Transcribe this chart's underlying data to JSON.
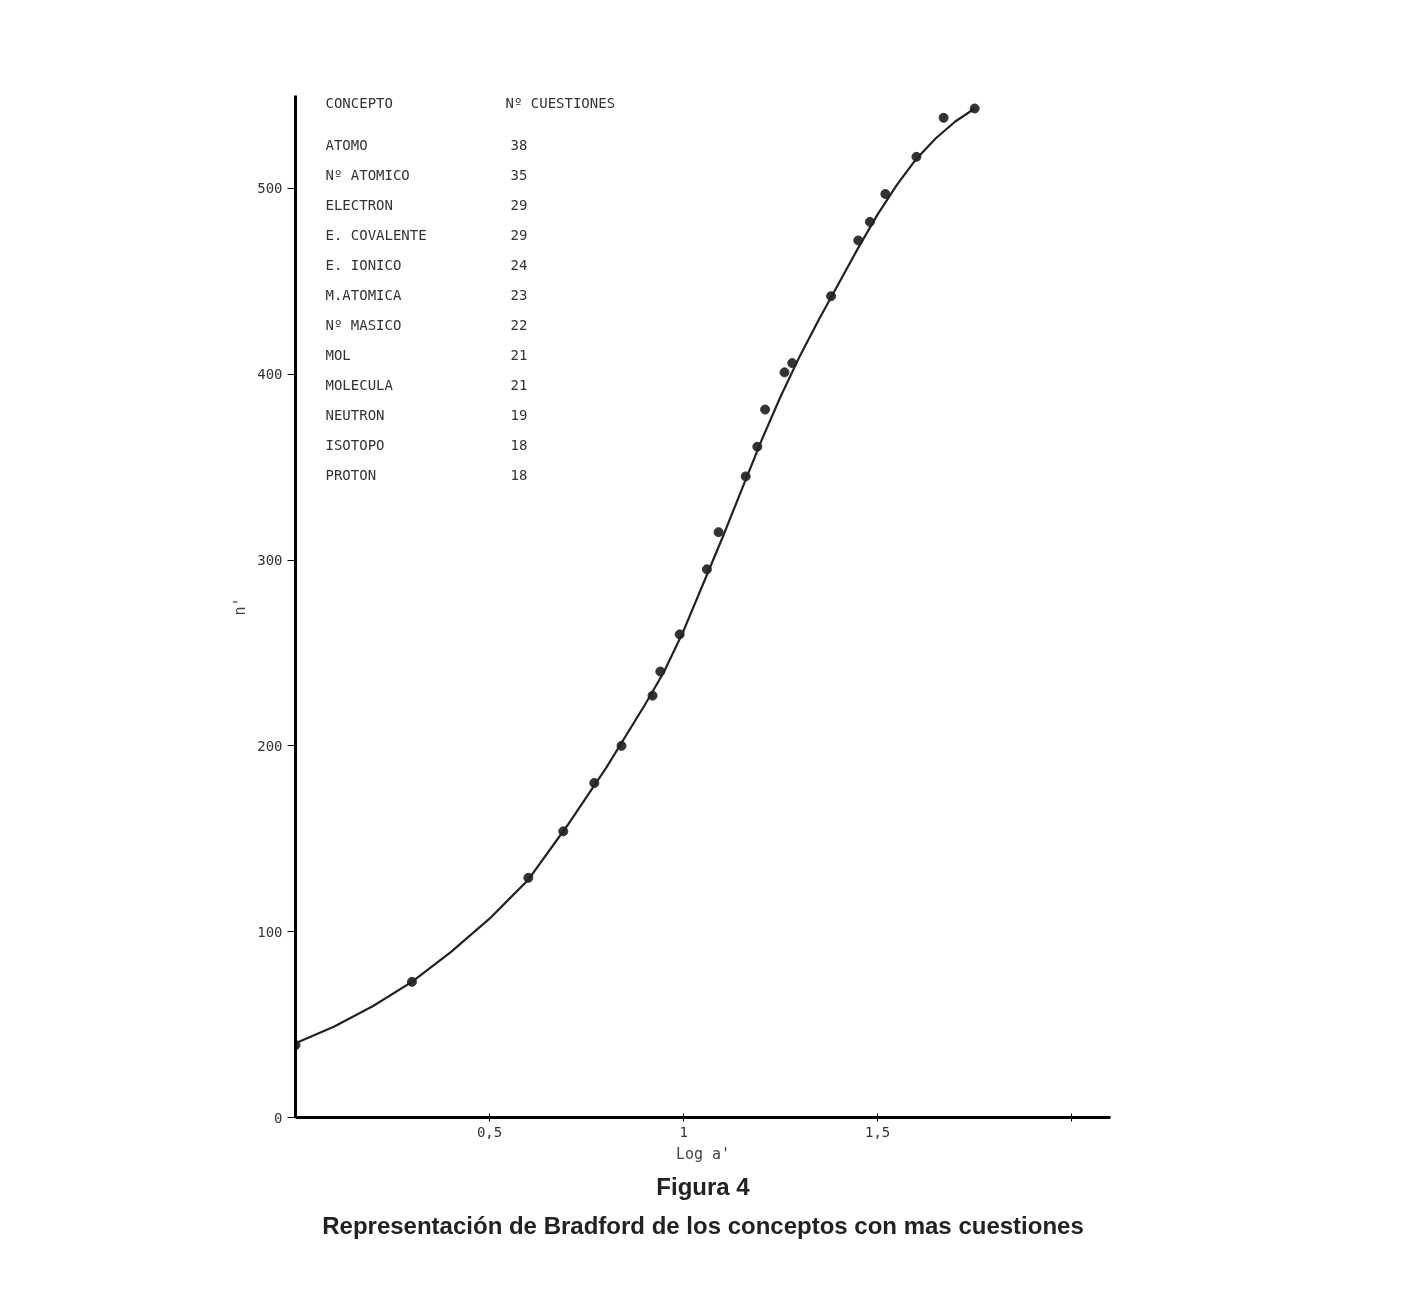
{
  "chart_data": {
    "type": "scatter",
    "title": "Figura 4",
    "subtitle": "Representación de Bradford de los conceptos con mas cuestiones",
    "xlabel": "Log a'",
    "ylabel": "n'",
    "xlim": [
      0,
      2.1
    ],
    "ylim": [
      0,
      550
    ],
    "xticks": [
      {
        "value": 0.5,
        "label": "0,5"
      },
      1,
      {
        "value": 1.5,
        "label": "1,5"
      },
      {
        "value": 2,
        "label": null
      }
    ],
    "yticks": [
      0,
      100,
      200,
      300,
      400,
      500
    ],
    "grid": false,
    "marker": "circle",
    "series": [
      {
        "color": "#333333",
        "x": [
          0,
          0.3,
          0.6,
          0.69,
          0.77,
          0.84,
          0.92,
          0.94,
          0.99,
          1.06,
          1.09,
          1.16,
          1.19,
          1.21,
          1.26,
          1.28,
          1.38,
          1.45,
          1.48,
          1.52,
          1.6,
          1.67,
          1.75
        ],
        "values": [
          39,
          73,
          129,
          154,
          180,
          200,
          227,
          240,
          260,
          295,
          315,
          345,
          361,
          381,
          401,
          406,
          442,
          472,
          482,
          497,
          517,
          538,
          543
        ]
      },
      {
        "type": "line",
        "color": "#222222",
        "marker": "none",
        "line_style": "solid",
        "x": [
          0,
          0.1,
          0.2,
          0.3,
          0.4,
          0.5,
          0.6,
          0.7,
          0.8,
          0.9,
          0.95,
          1.0,
          1.05,
          1.1,
          1.15,
          1.2,
          1.25,
          1.3,
          1.35,
          1.4,
          1.45,
          1.5,
          1.55,
          1.6,
          1.65,
          1.7,
          1.75
        ],
        "values": [
          40,
          49,
          60,
          73,
          89,
          107,
          128,
          157,
          188,
          222,
          240,
          262,
          287,
          312,
          338,
          364,
          388,
          410,
          430,
          449,
          468,
          486,
          502,
          516,
          527,
          536,
          543
        ]
      }
    ],
    "annotations": [
      "CONCEPTO",
      "Nº CUESTIONES",
      "ATOMO",
      "38",
      "Nº ATOMICO",
      "35",
      "ELECTRON",
      "29",
      "E. COVALENTE",
      "29",
      "E. IONICO",
      "24",
      "M.ATOMICA",
      "23",
      "Nº MASICO",
      "22",
      "MOL",
      "21",
      "MOLECULA",
      "21",
      "NEUTRON",
      "19",
      "ISOTOPO",
      "18",
      "PROTON",
      "18"
    ]
  }
}
